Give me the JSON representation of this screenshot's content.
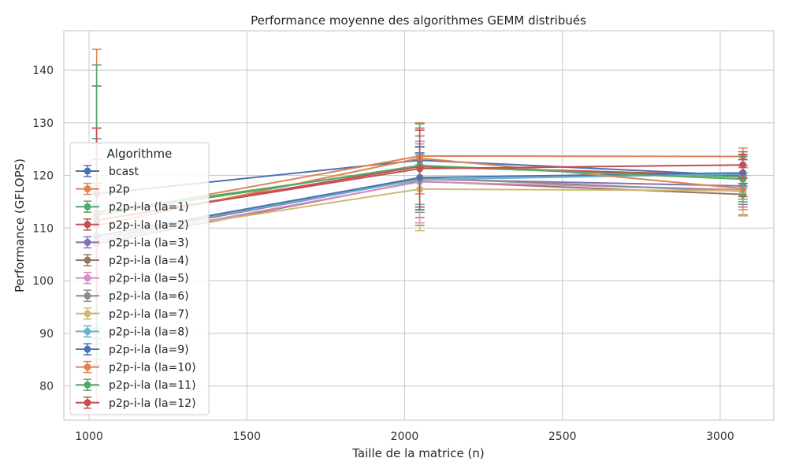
{
  "chart_data": {
    "type": "line",
    "title": "Performance moyenne des algorithmes GEMM distribués",
    "xlabel": "Taille de la matrice (n)",
    "ylabel": "Performance (GFLOPS)",
    "xlim": [
      920,
      3170
    ],
    "ylim": [
      73.5,
      147.5
    ],
    "xticks": [
      1000,
      1500,
      2000,
      2500,
      3000
    ],
    "yticks": [
      80,
      90,
      100,
      110,
      120,
      130,
      140
    ],
    "grid": true,
    "legend_title": "Algorithme",
    "legend_position": "lower-left",
    "x": [
      1024,
      2048,
      3072
    ],
    "series": [
      {
        "name": "bcast",
        "color": "#4c72b0",
        "values": [
          116.5,
          122.9,
          120.0
        ],
        "err": [
          [
            114.5,
            118.5
          ],
          [
            121.5,
            124.3
          ],
          [
            118.5,
            121.5
          ]
        ]
      },
      {
        "name": "p2p",
        "color": "#dd8452",
        "values": [
          112.5,
          123.7,
          123.6
        ],
        "err": [
          [
            108.5,
            116.5
          ],
          [
            122.0,
            125.4
          ],
          [
            122.0,
            125.2
          ]
        ]
      },
      {
        "name": "p2p-i-la (la=1)",
        "color": "#55a868",
        "values": [
          113.0,
          121.7,
          119.7
        ],
        "err": [
          [
            85.0,
            141.0
          ],
          [
            113.5,
            130.0
          ],
          [
            115.5,
            124.0
          ]
        ]
      },
      {
        "name": "p2p-i-la (la=2)",
        "color": "#c44e52",
        "values": [
          111.5,
          121.7,
          120.0
        ],
        "err": [
          [
            94.0,
            129.0
          ],
          [
            114.5,
            129.0
          ],
          [
            116.0,
            124.0
          ]
        ]
      },
      {
        "name": "p2p-i-la (la=3)",
        "color": "#8172b3",
        "values": [
          108.0,
          119.3,
          118.0
        ],
        "err": [
          [
            90.0,
            126.0
          ],
          [
            112.0,
            126.5
          ],
          [
            114.5,
            121.5
          ]
        ]
      },
      {
        "name": "p2p-i-la (la=4)",
        "color": "#937860",
        "values": [
          107.0,
          118.9,
          116.4
        ],
        "err": [
          [
            91.0,
            123.0
          ],
          [
            110.5,
            127.5
          ],
          [
            112.5,
            120.5
          ]
        ]
      },
      {
        "name": "p2p-i-la (la=5)",
        "color": "#da8bc3",
        "values": [
          107.5,
          118.8,
          117.3
        ],
        "err": [
          [
            88.0,
            127.0
          ],
          [
            111.0,
            126.5
          ],
          [
            114.0,
            120.5
          ]
        ]
      },
      {
        "name": "p2p-i-la (la=6)",
        "color": "#8c8c8c",
        "values": [
          108.0,
          119.5,
          117.0
        ],
        "err": [
          [
            89.0,
            127.0
          ],
          [
            113.0,
            126.0
          ],
          [
            114.0,
            120.0
          ]
        ]
      },
      {
        "name": "p2p-i-la (la=7)",
        "color": "#ccb974",
        "values": [
          108.0,
          117.4,
          117.1
        ],
        "err": [
          [
            98.0,
            118.0
          ],
          [
            109.5,
            125.3
          ],
          [
            112.3,
            121.9
          ]
        ]
      },
      {
        "name": "p2p-i-la (la=8)",
        "color": "#64b5cd",
        "values": [
          108.5,
          119.2,
          120.3
        ],
        "err": [
          [
            90.0,
            127.0
          ],
          [
            114.5,
            124.0
          ],
          [
            117.5,
            123.0
          ]
        ]
      },
      {
        "name": "p2p-i-la (la=9)",
        "color": "#4c72b0",
        "values": [
          108.5,
          119.6,
          120.5
        ],
        "err": [
          [
            80.0,
            137.0
          ],
          [
            113.5,
            125.5
          ],
          [
            118.0,
            123.0
          ]
        ]
      },
      {
        "name": "p2p-i-la (la=10)",
        "color": "#dd8452",
        "values": [
          110.5,
          123.3,
          117.5
        ],
        "err": [
          [
            77.0,
            144.0
          ],
          [
            116.5,
            130.0
          ],
          [
            113.5,
            121.5
          ]
        ]
      },
      {
        "name": "p2p-i-la (la=11)",
        "color": "#55a868",
        "values": [
          112.5,
          121.9,
          119.3
        ],
        "err": [
          [
            84.0,
            141.0
          ],
          [
            114.0,
            129.8
          ],
          [
            115.0,
            123.6
          ]
        ]
      },
      {
        "name": "p2p-i-la (la=12)",
        "color": "#c44e52",
        "values": [
          111.5,
          121.3,
          122.0
        ],
        "err": [
          [
            94.0,
            129.0
          ],
          [
            114.0,
            128.6
          ],
          [
            119.5,
            124.5
          ]
        ]
      }
    ]
  }
}
